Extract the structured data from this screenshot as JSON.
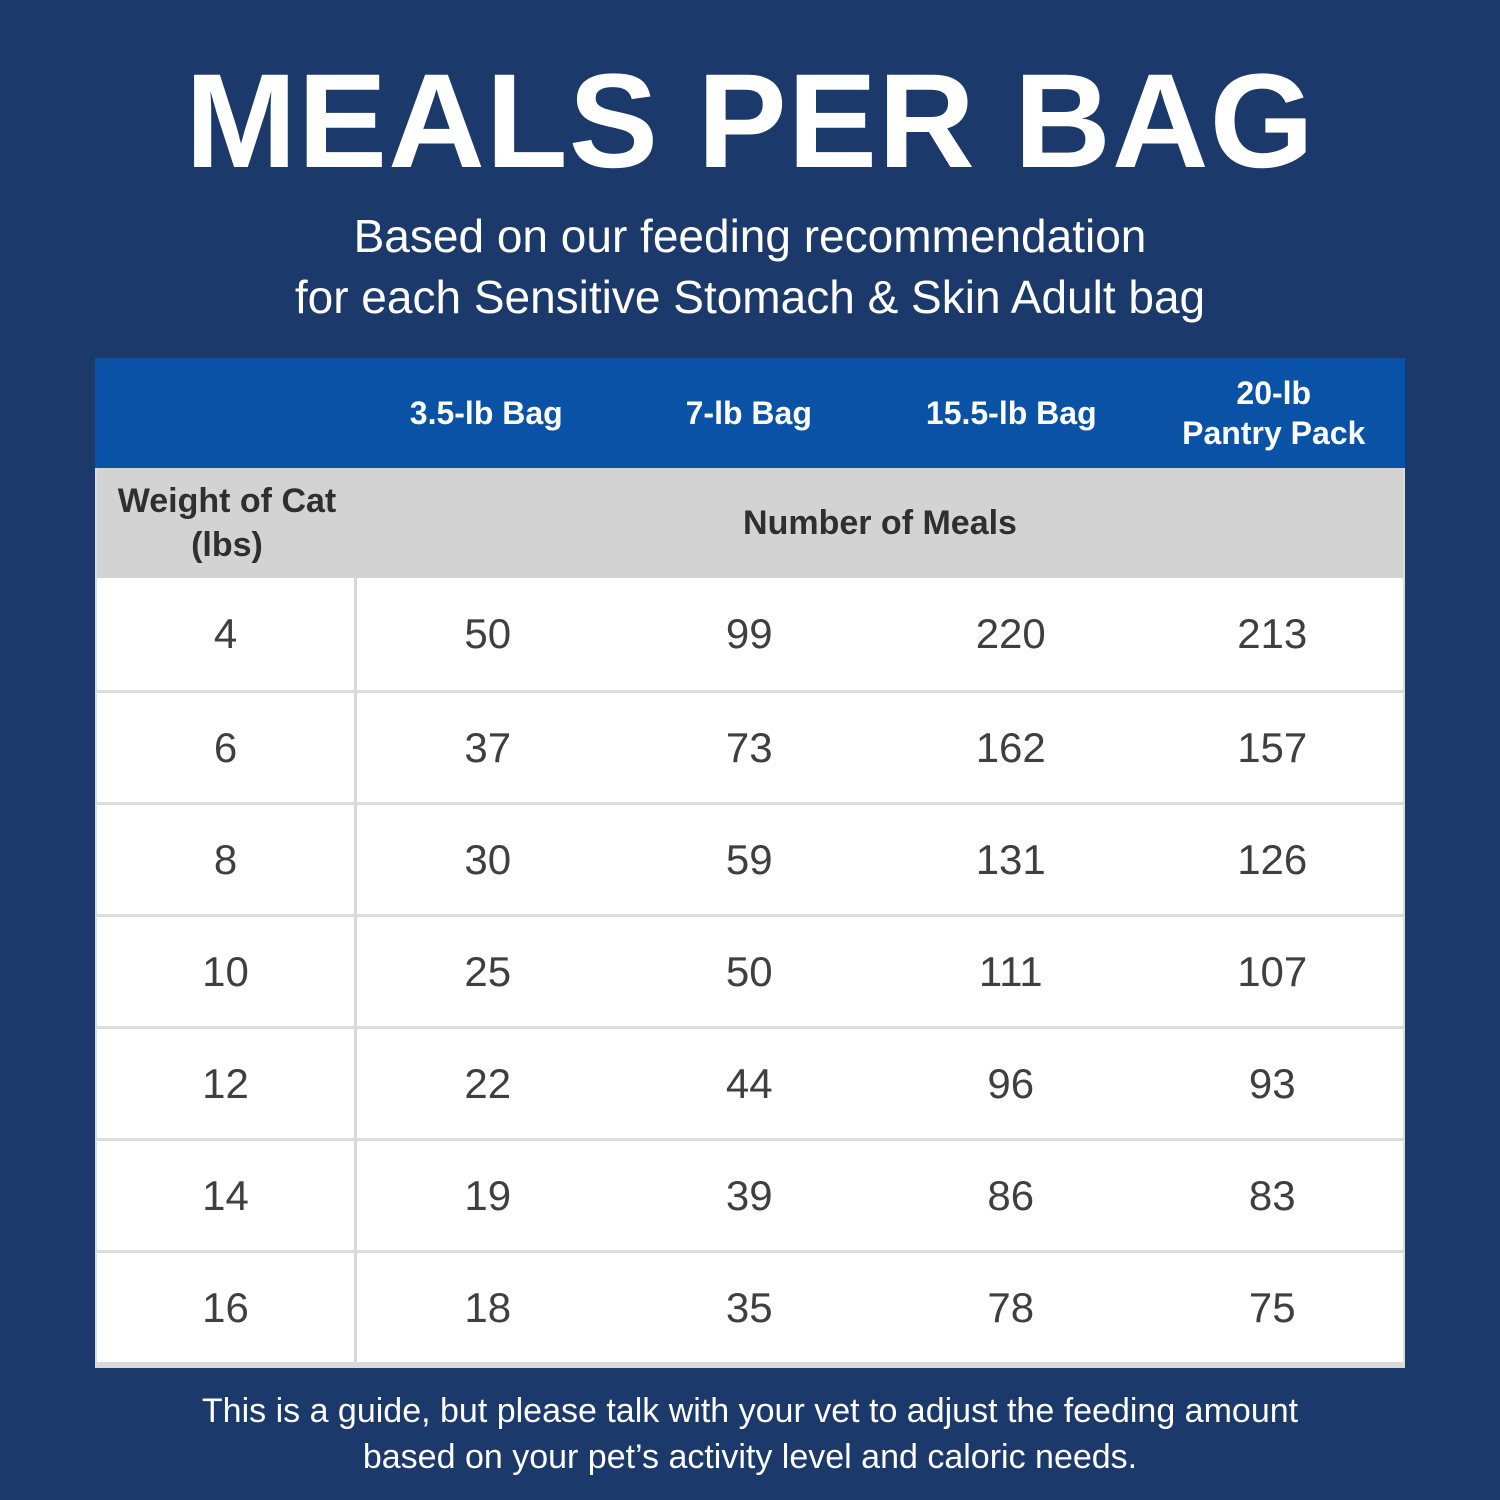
{
  "title": "MEALS PER BAG",
  "subtitle": {
    "line1": "Based on our feeding recommendation",
    "line2": "for each Sensitive Stomach & Skin Adult bag"
  },
  "table": {
    "col_headers": {
      "bag_3_5": "3.5-lb Bag",
      "bag_7": "7-lb Bag",
      "bag_15_5": "15.5-lb Bag",
      "pantry_line1": "20-lb",
      "pantry_line2": "Pantry Pack"
    },
    "subheader": {
      "weight_line1": "Weight of Cat",
      "weight_line2": "(lbs)",
      "meals": "Number of Meals"
    }
  },
  "footer": {
    "line1": "This is a guide, but please talk with your vet to adjust the feeding amount",
    "line2": "based on your pet’s activity level and caloric needs."
  },
  "colors": {
    "background_navy": "#1b396b",
    "header_blue": "#0a52a6",
    "subheader_gray": "#d3d3d3",
    "divider_gray": "#dcdcdc",
    "body_text": "#3f3f3f",
    "text_white": "#ffffff"
  },
  "chart_data": {
    "type": "table",
    "title": "MEALS PER BAG",
    "subtitle": "Based on our feeding recommendation for each Sensitive Stomach & Skin Adult bag",
    "columns": [
      "Weight of Cat (lbs)",
      "3.5-lb Bag",
      "7-lb Bag",
      "15.5-lb Bag",
      "20-lb Pantry Pack"
    ],
    "values_label": "Number of Meals",
    "rows": [
      [
        4,
        50,
        99,
        220,
        213
      ],
      [
        6,
        37,
        73,
        162,
        157
      ],
      [
        8,
        30,
        59,
        131,
        126
      ],
      [
        10,
        25,
        50,
        111,
        107
      ],
      [
        12,
        22,
        44,
        96,
        93
      ],
      [
        14,
        19,
        39,
        86,
        83
      ],
      [
        16,
        18,
        35,
        78,
        75
      ]
    ],
    "note": "This is a guide, but please talk with your vet to adjust the feeding amount based on your pet’s activity level and caloric needs."
  }
}
